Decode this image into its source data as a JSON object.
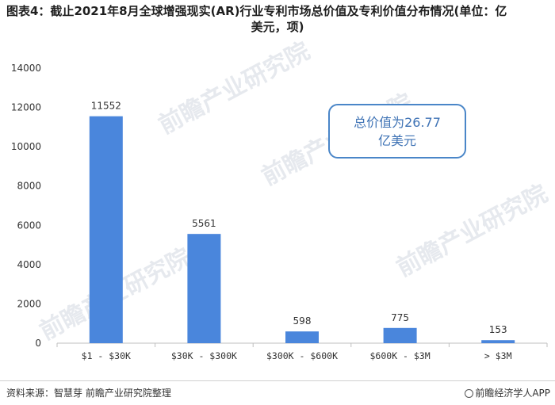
{
  "title": {
    "line1": "图表4：截止2021年8月全球增强现实(AR)行业专利市场总价值及专利价值分布情况(单位：亿",
    "line2": "美元，项)"
  },
  "annotation": {
    "line1": "总价值为26.77",
    "line2": "亿美元"
  },
  "watermark": "前瞻产业研究院",
  "footer": {
    "source": "资料来源：智慧芽 前瞻产业研究院整理",
    "brand": "前瞻经济学人APP"
  },
  "colors": {
    "bar": "#4a86dc",
    "annotation_border": "#4a86c8"
  },
  "chart_data": {
    "type": "bar",
    "categories": [
      "$1 - $30K",
      "$30K - $300K",
      "$300K - $600K",
      "$600K - $3M",
      "> $3M"
    ],
    "values": [
      11552,
      5561,
      598,
      775,
      153
    ],
    "data_labels": [
      "11552",
      "5561",
      "598",
      "775",
      "153"
    ],
    "ylim": [
      0,
      14000
    ],
    "yticks": [
      0,
      2000,
      4000,
      6000,
      8000,
      10000,
      12000,
      14000
    ],
    "grid": false,
    "title": "",
    "xlabel": "",
    "ylabel": ""
  }
}
